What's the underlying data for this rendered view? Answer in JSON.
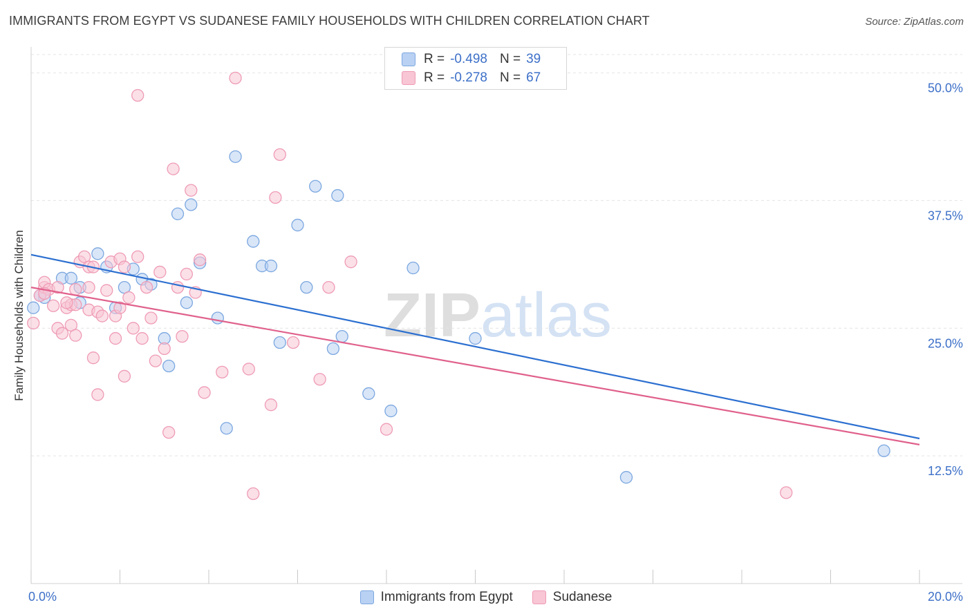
{
  "chart_data": {
    "type": "scatter",
    "title": "IMMIGRANTS FROM EGYPT VS SUDANESE FAMILY HOUSEHOLDS WITH CHILDREN CORRELATION CHART",
    "source": "Source: ZipAtlas.com",
    "xlabel": "",
    "ylabel": "Family Households with Children",
    "xlim": [
      0,
      20
    ],
    "ylim": [
      0,
      52
    ],
    "x_tick_labels": [
      "0.0%",
      "20.0%"
    ],
    "y_ticks": [
      12.5,
      25.0,
      37.5,
      50.0
    ],
    "y_tick_labels": [
      "12.5%",
      "25.0%",
      "37.5%",
      "50.0%"
    ],
    "grid": true,
    "watermark": "ZIPatlas",
    "legend_items": [
      "Immigrants from Egypt",
      "Sudanese"
    ],
    "series": [
      {
        "name": "Immigrants from Egypt",
        "color": "#7ba7e0",
        "fill": "#b9d1f3",
        "line_color": "#2b6fd0",
        "r_label": "R =",
        "r": "-0.498",
        "n_label": "N =",
        "n": "39",
        "trend": [
          [
            0,
            32.2
          ],
          [
            20,
            14.2
          ]
        ],
        "points": [
          [
            0.05,
            27.0
          ],
          [
            0.3,
            28.0
          ],
          [
            0.7,
            29.9
          ],
          [
            0.9,
            29.9
          ],
          [
            1.1,
            29.0
          ],
          [
            1.1,
            27.5
          ],
          [
            1.5,
            32.3
          ],
          [
            1.7,
            31.0
          ],
          [
            1.9,
            27.0
          ],
          [
            2.1,
            29.0
          ],
          [
            2.3,
            30.8
          ],
          [
            2.5,
            29.8
          ],
          [
            2.7,
            29.3
          ],
          [
            3.0,
            24.0
          ],
          [
            3.1,
            21.3
          ],
          [
            3.3,
            36.2
          ],
          [
            3.5,
            27.5
          ],
          [
            3.6,
            37.1
          ],
          [
            3.8,
            31.4
          ],
          [
            4.2,
            26.0
          ],
          [
            4.4,
            15.2
          ],
          [
            4.6,
            41.8
          ],
          [
            5.0,
            33.5
          ],
          [
            5.2,
            31.1
          ],
          [
            5.4,
            31.1
          ],
          [
            5.6,
            23.6
          ],
          [
            6.0,
            35.1
          ],
          [
            6.2,
            29.0
          ],
          [
            6.4,
            38.9
          ],
          [
            6.8,
            23.0
          ],
          [
            6.9,
            38.0
          ],
          [
            7.0,
            24.2
          ],
          [
            7.6,
            18.6
          ],
          [
            8.1,
            16.9
          ],
          [
            8.6,
            30.9
          ],
          [
            10.0,
            24.0
          ],
          [
            13.4,
            10.4
          ],
          [
            19.2,
            13.0
          ],
          [
            0.2,
            28.2
          ]
        ]
      },
      {
        "name": "Sudanese",
        "color": "#ef9bb5",
        "fill": "#f8c6d5",
        "line_color": "#e0608c",
        "r_label": "R =",
        "r": "-0.278",
        "n_label": "N =",
        "n": "67",
        "trend": [
          [
            0,
            29.0
          ],
          [
            20,
            13.6
          ]
        ],
        "points": [
          [
            0.05,
            25.5
          ],
          [
            0.2,
            28.2
          ],
          [
            0.3,
            29.0
          ],
          [
            0.3,
            29.5
          ],
          [
            0.4,
            28.8
          ],
          [
            0.5,
            27.2
          ],
          [
            0.6,
            29.0
          ],
          [
            0.6,
            25.0
          ],
          [
            0.7,
            24.5
          ],
          [
            0.8,
            27.0
          ],
          [
            0.9,
            27.3
          ],
          [
            0.9,
            25.3
          ],
          [
            1.0,
            28.8
          ],
          [
            1.0,
            27.3
          ],
          [
            1.0,
            24.3
          ],
          [
            1.1,
            31.5
          ],
          [
            1.2,
            32.0
          ],
          [
            1.3,
            29.0
          ],
          [
            1.3,
            26.8
          ],
          [
            1.3,
            31.0
          ],
          [
            1.4,
            22.1
          ],
          [
            1.5,
            18.5
          ],
          [
            1.5,
            26.6
          ],
          [
            1.6,
            26.2
          ],
          [
            1.7,
            28.7
          ],
          [
            1.8,
            31.5
          ],
          [
            1.9,
            26.2
          ],
          [
            1.9,
            24.0
          ],
          [
            2.0,
            31.8
          ],
          [
            2.0,
            27.0
          ],
          [
            2.1,
            20.3
          ],
          [
            2.2,
            28.0
          ],
          [
            2.3,
            25.0
          ],
          [
            2.4,
            32.0
          ],
          [
            2.4,
            47.8
          ],
          [
            2.5,
            24.0
          ],
          [
            2.6,
            29.0
          ],
          [
            2.7,
            26.0
          ],
          [
            2.8,
            21.8
          ],
          [
            2.9,
            30.5
          ],
          [
            3.0,
            23.0
          ],
          [
            3.1,
            14.8
          ],
          [
            3.2,
            40.6
          ],
          [
            3.3,
            29.0
          ],
          [
            3.4,
            24.2
          ],
          [
            3.5,
            30.3
          ],
          [
            3.6,
            38.5
          ],
          [
            3.7,
            28.5
          ],
          [
            3.8,
            31.7
          ],
          [
            3.9,
            18.7
          ],
          [
            4.3,
            20.7
          ],
          [
            4.6,
            49.5
          ],
          [
            4.9,
            21.0
          ],
          [
            5.0,
            8.8
          ],
          [
            5.4,
            17.5
          ],
          [
            5.5,
            37.8
          ],
          [
            5.6,
            42.0
          ],
          [
            5.9,
            23.6
          ],
          [
            6.5,
            20.0
          ],
          [
            6.7,
            29.0
          ],
          [
            7.2,
            31.5
          ],
          [
            8.0,
            15.1
          ],
          [
            17.0,
            8.9
          ],
          [
            1.4,
            31.0
          ],
          [
            0.8,
            27.5
          ],
          [
            2.1,
            31.0
          ],
          [
            0.3,
            28.4
          ]
        ]
      }
    ]
  }
}
